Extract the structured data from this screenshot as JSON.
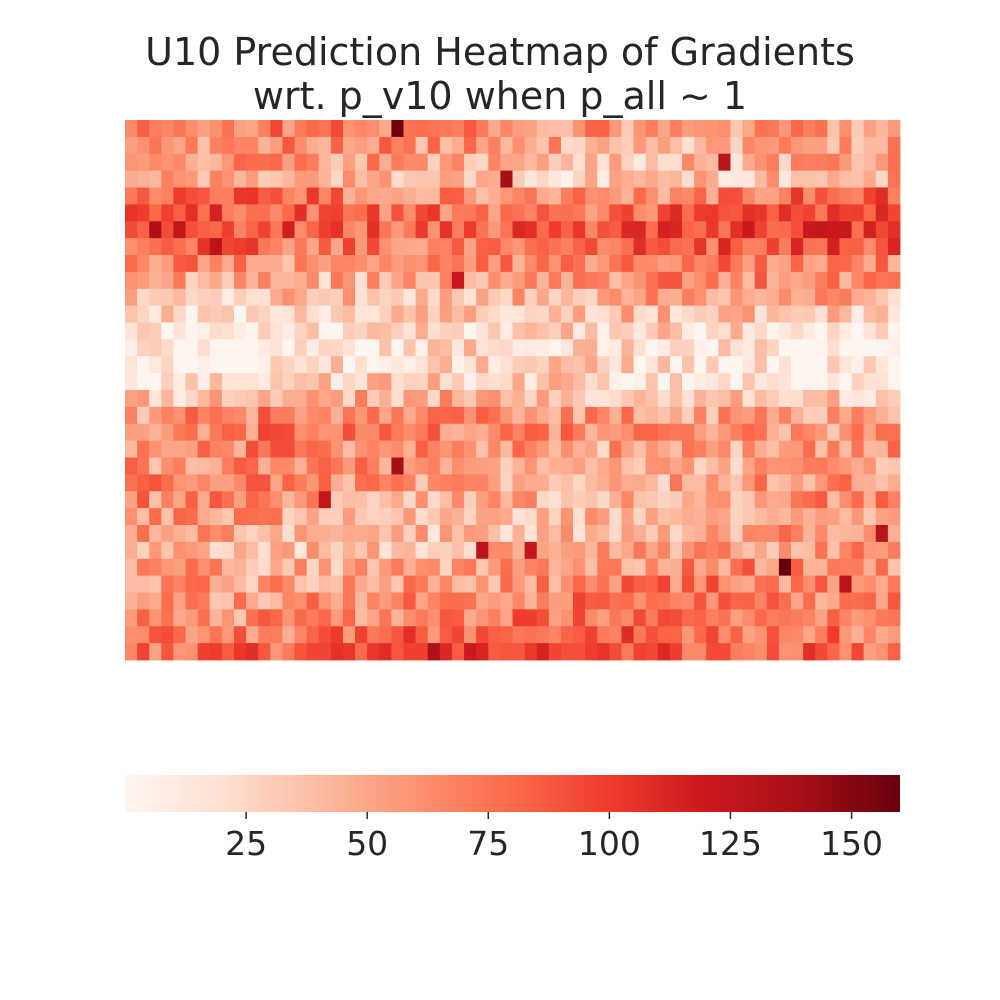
{
  "chart_data": {
    "type": "heatmap",
    "title": "U10 Prediction Heatmap of Gradients",
    "subtitle": "wrt. p_v10 when p_all ~ 1",
    "xlabel": "",
    "ylabel": "",
    "rows": 32,
    "cols": 64,
    "value_range": [
      0,
      160
    ],
    "grid": false,
    "colormap": "Reds",
    "colorbar": {
      "orientation": "horizontal",
      "placement": "bottom",
      "ticks": [
        25,
        50,
        75,
        100,
        125,
        150
      ],
      "tick_labels": [
        "25",
        "50",
        "75",
        "100",
        "125",
        "150"
      ]
    },
    "row_profile": [
      62,
      55,
      48,
      40,
      72,
      85,
      92,
      80,
      66,
      55,
      44,
      30,
      18,
      14,
      16,
      20,
      38,
      60,
      64,
      58,
      52,
      56,
      54,
      50,
      48,
      46,
      55,
      60,
      66,
      70,
      78,
      88
    ],
    "hotspots": [
      {
        "row": 0,
        "col": 22,
        "value": 158
      },
      {
        "row": 3,
        "col": 31,
        "value": 140
      },
      {
        "row": 2,
        "col": 49,
        "value": 130
      },
      {
        "row": 6,
        "col": 2,
        "value": 135
      },
      {
        "row": 7,
        "col": 7,
        "value": 130
      },
      {
        "row": 9,
        "col": 27,
        "value": 120
      },
      {
        "row": 20,
        "col": 22,
        "value": 140
      },
      {
        "row": 22,
        "col": 16,
        "value": 125
      },
      {
        "row": 25,
        "col": 29,
        "value": 128
      },
      {
        "row": 25,
        "col": 33,
        "value": 125
      },
      {
        "row": 26,
        "col": 54,
        "value": 160
      },
      {
        "row": 27,
        "col": 59,
        "value": 130
      },
      {
        "row": 24,
        "col": 62,
        "value": 130
      },
      {
        "row": 31,
        "col": 25,
        "value": 135
      }
    ]
  }
}
